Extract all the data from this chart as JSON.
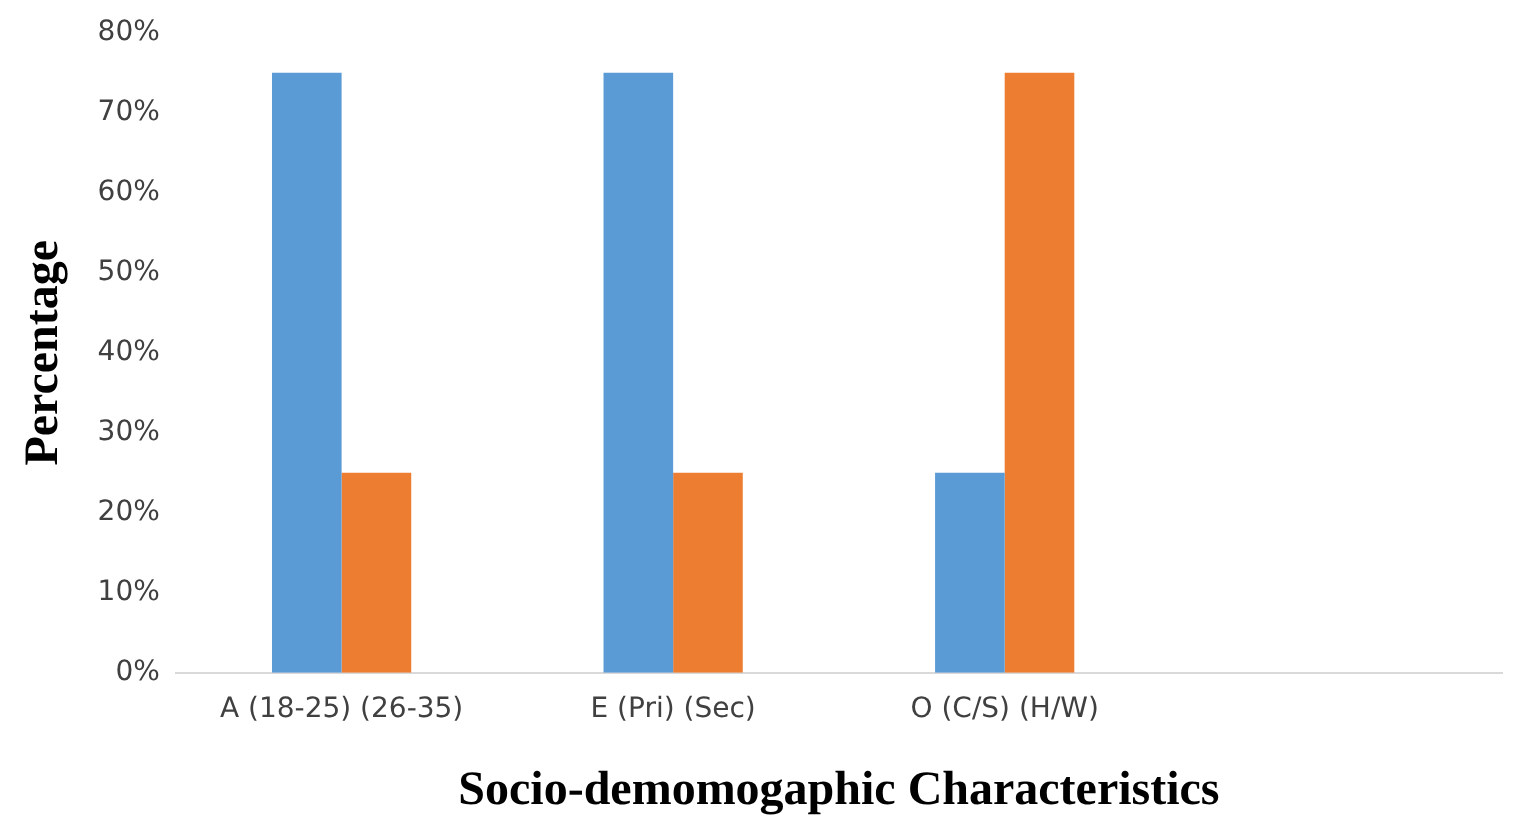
{
  "chart_data": {
    "type": "bar",
    "xlabel": "Socio-demomogaphic Characteristics",
    "ylabel": "Percentage",
    "categories": [
      "A (18-25) (26-35)",
      "E (Pri) (Sec)",
      "O (C/S) (H/W)",
      null
    ],
    "series": [
      {
        "color": "#5b9bd5",
        "values": [
          75,
          75,
          25,
          null
        ]
      },
      {
        "color": "#ed7d31",
        "values": [
          25,
          25,
          75,
          null
        ]
      }
    ],
    "ylim": [
      0,
      80
    ],
    "yticks": [
      {
        "value": 0,
        "label": "0%"
      },
      {
        "value": 10,
        "label": "10%"
      },
      {
        "value": 20,
        "label": "20%"
      },
      {
        "value": 30,
        "label": "30%"
      },
      {
        "value": 40,
        "label": "40%"
      },
      {
        "value": 50,
        "label": "50%"
      },
      {
        "value": 60,
        "label": "60%"
      },
      {
        "value": 70,
        "label": "70%"
      },
      {
        "value": 80,
        "label": "80%"
      }
    ],
    "grid": false,
    "legend": false
  }
}
